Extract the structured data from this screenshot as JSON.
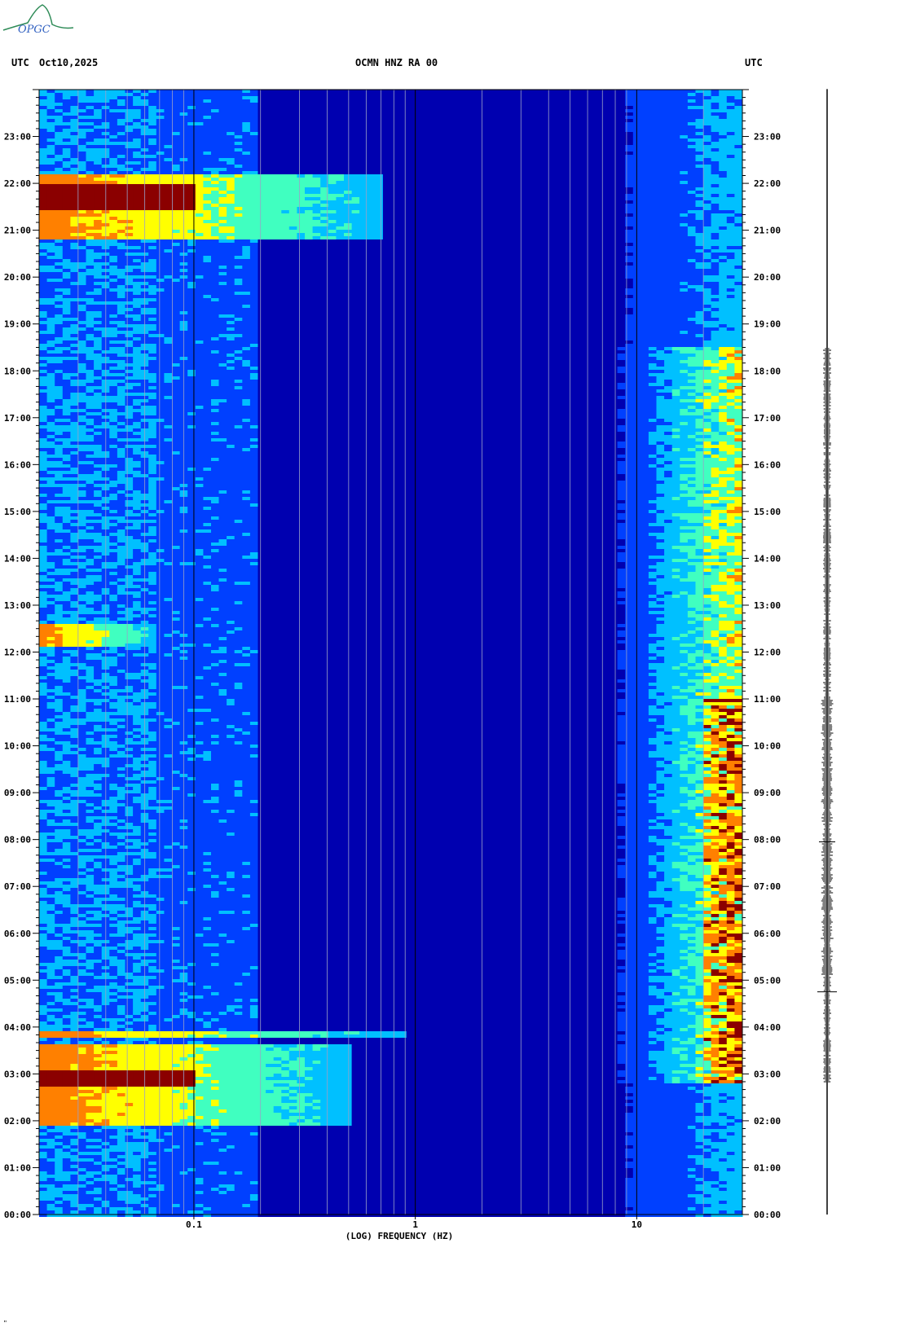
{
  "logo": {
    "text": "OPGC"
  },
  "header": {
    "left_tz": "UTC",
    "date": "Oct10,2025",
    "station": "OCMN HNZ RA 00",
    "right_tz": "UTC"
  },
  "footer_mark": "\"",
  "colors": {
    "background": "#0a1fbf",
    "low": "#0033ff",
    "mid": "#00e5ff",
    "high": "#ffff00",
    "peak": "#8b0000",
    "grid": "#9aa0c8",
    "trace": "#000000"
  },
  "chart_data": {
    "type": "heatmap",
    "title": "OCMN HNZ RA 00",
    "xlabel": "(LOG) FREQUENCY (HZ)",
    "x_scale": "log",
    "xlim": [
      0.02,
      30
    ],
    "x_ticks": [
      {
        "value": 0.1,
        "label": "0.1"
      },
      {
        "value": 1,
        "label": "1"
      },
      {
        "value": 10,
        "label": "10"
      }
    ],
    "ylabel_left": "UTC",
    "ylabel_right": "UTC",
    "y_ticks": [
      "00:00",
      "01:00",
      "02:00",
      "03:00",
      "04:00",
      "05:00",
      "06:00",
      "07:00",
      "08:00",
      "09:00",
      "10:00",
      "11:00",
      "12:00",
      "13:00",
      "14:00",
      "15:00",
      "16:00",
      "17:00",
      "18:00",
      "19:00",
      "20:00",
      "21:00",
      "22:00",
      "23:00"
    ],
    "ylim_hours": [
      0,
      24
    ],
    "colorscale": [
      "#0000b0",
      "#0040ff",
      "#00c0ff",
      "#40ffc0",
      "#ffff00",
      "#ff8000",
      "#8b0000"
    ],
    "events": [
      {
        "start_hour": 1.9,
        "end_hour": 3.6,
        "fmax_hz": 0.5,
        "peak_start": 2.7,
        "peak_end": 3.1
      },
      {
        "start_hour": 3.8,
        "end_hour": 3.9,
        "fmax_hz": 0.9,
        "peak_start": null,
        "peak_end": null
      },
      {
        "start_hour": 20.8,
        "end_hour": 22.2,
        "fmax_hz": 0.7,
        "peak_start": 21.4,
        "peak_end": 22.0
      },
      {
        "start_hour": 12.1,
        "end_hour": 12.6,
        "fmax_hz": 0.07,
        "peak_start": null,
        "peak_end": null
      }
    ],
    "high_freq_noise": {
      "fmin_hz": 8,
      "fmax_hz": 30,
      "active_start_hour": 2.8,
      "active_end_hour": 18.5
    }
  }
}
